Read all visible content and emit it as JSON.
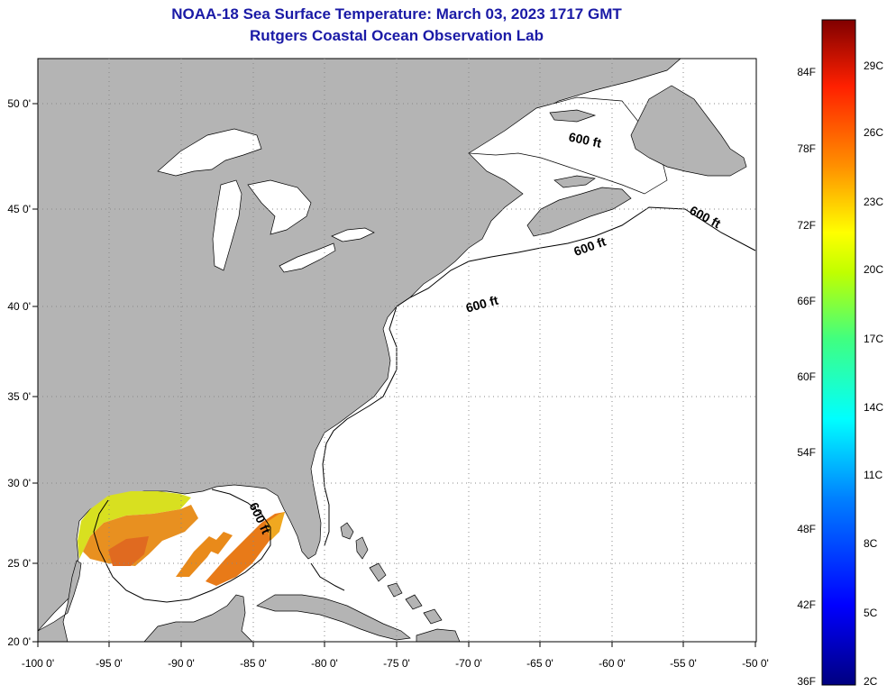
{
  "header": {
    "title": "NOAA-18 Sea Surface Temperature:  March 03, 2023 1717 GMT",
    "subtitle": "Rutgers Coastal Ocean Observation Lab"
  },
  "map": {
    "lon_ticks": [
      "-100 0'",
      "-95 0'",
      "-90 0'",
      "-85 0'",
      "-80 0'",
      "-75 0'",
      "-70 0'",
      "-65 0'",
      "-60 0'",
      "-55 0'",
      "-50 0'"
    ],
    "lat_ticks": [
      "50 0'",
      "45 0'",
      "40 0'",
      "35 0'",
      "30 0'",
      "25 0'",
      "20 0'"
    ],
    "contour_labels": [
      "600 ft",
      "600 ft",
      "600 ft",
      "600 ft",
      "600 ft"
    ],
    "land_color": "#b4b4b4",
    "water_color": "#ffffff"
  },
  "colorbar": {
    "fahrenheit_labels": [
      "84F",
      "78F",
      "72F",
      "66F",
      "60F",
      "54F",
      "48F",
      "42F",
      "36F"
    ],
    "celsius_labels": [
      "29C",
      "26C",
      "23C",
      "20C",
      "17C",
      "14C",
      "11C",
      "8C",
      "5C",
      "2C"
    ]
  }
}
